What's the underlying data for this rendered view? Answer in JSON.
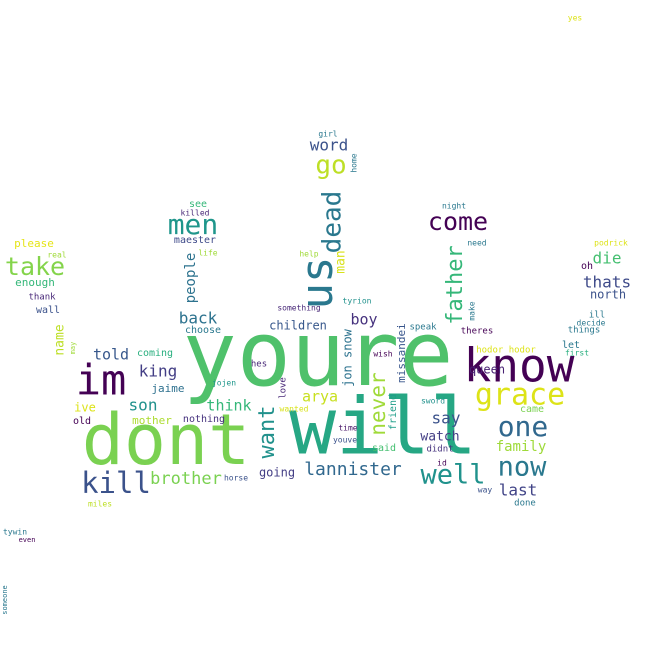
{
  "words": [
    {
      "text": "youre",
      "color": "#4fc16b"
    },
    {
      "text": "will",
      "color": "#26a784"
    },
    {
      "text": "dont",
      "color": "#7ad151"
    },
    {
      "text": "know",
      "color": "#440154"
    },
    {
      "text": "im",
      "color": "#440154"
    },
    {
      "text": "us",
      "color": "#2a788e"
    },
    {
      "text": "grace",
      "color": "#dde318"
    },
    {
      "text": "kill",
      "color": "#3b528b"
    },
    {
      "text": "men",
      "color": "#1f968b"
    },
    {
      "text": "one",
      "color": "#31688e"
    },
    {
      "text": "now",
      "color": "#2a788e"
    },
    {
      "text": "well",
      "color": "#20928c"
    },
    {
      "text": "go",
      "color": "#bddf26"
    },
    {
      "text": "dead",
      "color": "#2a788e"
    },
    {
      "text": "come",
      "color": "#440154"
    },
    {
      "text": "take",
      "color": "#84d44b"
    },
    {
      "text": "father",
      "color": "#35b779"
    },
    {
      "text": "want",
      "color": "#21918c"
    },
    {
      "text": "never",
      "color": "#a0da39"
    },
    {
      "text": "lannister",
      "color": "#31688e"
    },
    {
      "text": "brother",
      "color": "#7ad151"
    },
    {
      "text": "say",
      "color": "#3b528b"
    },
    {
      "text": "last",
      "color": "#414487"
    },
    {
      "text": "family",
      "color": "#9fda3a"
    },
    {
      "text": "son",
      "color": "#21918c"
    },
    {
      "text": "thats",
      "color": "#3e4a89"
    },
    {
      "text": "die",
      "color": "#44bf70"
    },
    {
      "text": "back",
      "color": "#2c728e"
    },
    {
      "text": "king",
      "color": "#433e85"
    },
    {
      "text": "word",
      "color": "#3b528b"
    },
    {
      "text": "boy",
      "color": "#46327e"
    },
    {
      "text": "arya",
      "color": "#c8e020"
    },
    {
      "text": "think",
      "color": "#35b779"
    },
    {
      "text": "told",
      "color": "#38588c"
    },
    {
      "text": "people",
      "color": "#2c728e"
    },
    {
      "text": "man",
      "color": "#d8e219"
    },
    {
      "text": "name",
      "color": "#bddf26"
    },
    {
      "text": "watch",
      "color": "#433e85"
    },
    {
      "text": "queen",
      "color": "#482173"
    },
    {
      "text": "children",
      "color": "#38588c"
    },
    {
      "text": "jon snow",
      "color": "#2c728e"
    },
    {
      "text": "missandei",
      "color": "#39568c"
    },
    {
      "text": "friend",
      "color": "#1f9e89"
    },
    {
      "text": "north",
      "color": "#3b528b"
    },
    {
      "text": "going",
      "color": "#433e85"
    },
    {
      "text": "jaime",
      "color": "#2d708e"
    },
    {
      "text": "mother",
      "color": "#addc30"
    },
    {
      "text": "ive",
      "color": "#dde318"
    },
    {
      "text": "enough",
      "color": "#35b779"
    },
    {
      "text": "please",
      "color": "#e5e419"
    },
    {
      "text": "see",
      "color": "#35b779"
    },
    {
      "text": "maester",
      "color": "#3e4a89"
    },
    {
      "text": "coming",
      "color": "#29af7f"
    },
    {
      "text": "choose",
      "color": "#2a788e"
    },
    {
      "text": "nothing",
      "color": "#46327e"
    },
    {
      "text": "love",
      "color": "#482878"
    },
    {
      "text": "came",
      "color": "#7ad151"
    },
    {
      "text": "let",
      "color": "#2a788e"
    },
    {
      "text": "said",
      "color": "#44bf70"
    },
    {
      "text": "didnt",
      "color": "#46337e"
    },
    {
      "text": "done",
      "color": "#2a788e"
    },
    {
      "text": "hes",
      "color": "#482878"
    },
    {
      "text": "old",
      "color": "#440154"
    },
    {
      "text": "wall",
      "color": "#3b528b"
    },
    {
      "text": "thank",
      "color": "#482878"
    },
    {
      "text": "time",
      "color": "#481668"
    },
    {
      "text": "youve",
      "color": "#3b528b"
    },
    {
      "text": "wanted",
      "color": "#d8e219"
    },
    {
      "text": "theres",
      "color": "#440154"
    },
    {
      "text": "speak",
      "color": "#2a788e"
    },
    {
      "text": "ill",
      "color": "#2a788e"
    },
    {
      "text": "decide",
      "color": "#2a788e"
    },
    {
      "text": "things",
      "color": "#2a788e"
    },
    {
      "text": "oh",
      "color": "#440154"
    },
    {
      "text": "first",
      "color": "#29af7f"
    },
    {
      "text": "hodor hodor",
      "color": "#dde318"
    },
    {
      "text": "sword",
      "color": "#21918c"
    },
    {
      "text": "wish",
      "color": "#440154"
    },
    {
      "text": "id",
      "color": "#440154"
    },
    {
      "text": "horse",
      "color": "#3b528b"
    },
    {
      "text": "way",
      "color": "#3b528b"
    },
    {
      "text": "miles",
      "color": "#bddf26"
    },
    {
      "text": "jojen",
      "color": "#1f968b"
    },
    {
      "text": "something",
      "color": "#482878"
    },
    {
      "text": "tyrion",
      "color": "#21918c"
    },
    {
      "text": "make",
      "color": "#2a788e"
    },
    {
      "text": "help",
      "color": "#a0da39"
    },
    {
      "text": "need",
      "color": "#2a788e"
    },
    {
      "text": "night",
      "color": "#2a788e"
    },
    {
      "text": "life",
      "color": "#a0da39"
    },
    {
      "text": "killed",
      "color": "#482878"
    },
    {
      "text": "real",
      "color": "#a0da39"
    },
    {
      "text": "may",
      "color": "#a0da39"
    },
    {
      "text": "girl",
      "color": "#2a788e"
    },
    {
      "text": "home",
      "color": "#2a788e"
    },
    {
      "text": "podrick",
      "color": "#dde318"
    },
    {
      "text": "yes",
      "color": "#dde318"
    },
    {
      "text": "tywin",
      "color": "#2a788e"
    },
    {
      "text": "even",
      "color": "#440154"
    },
    {
      "text": "someone",
      "color": "#2a788e"
    }
  ]
}
